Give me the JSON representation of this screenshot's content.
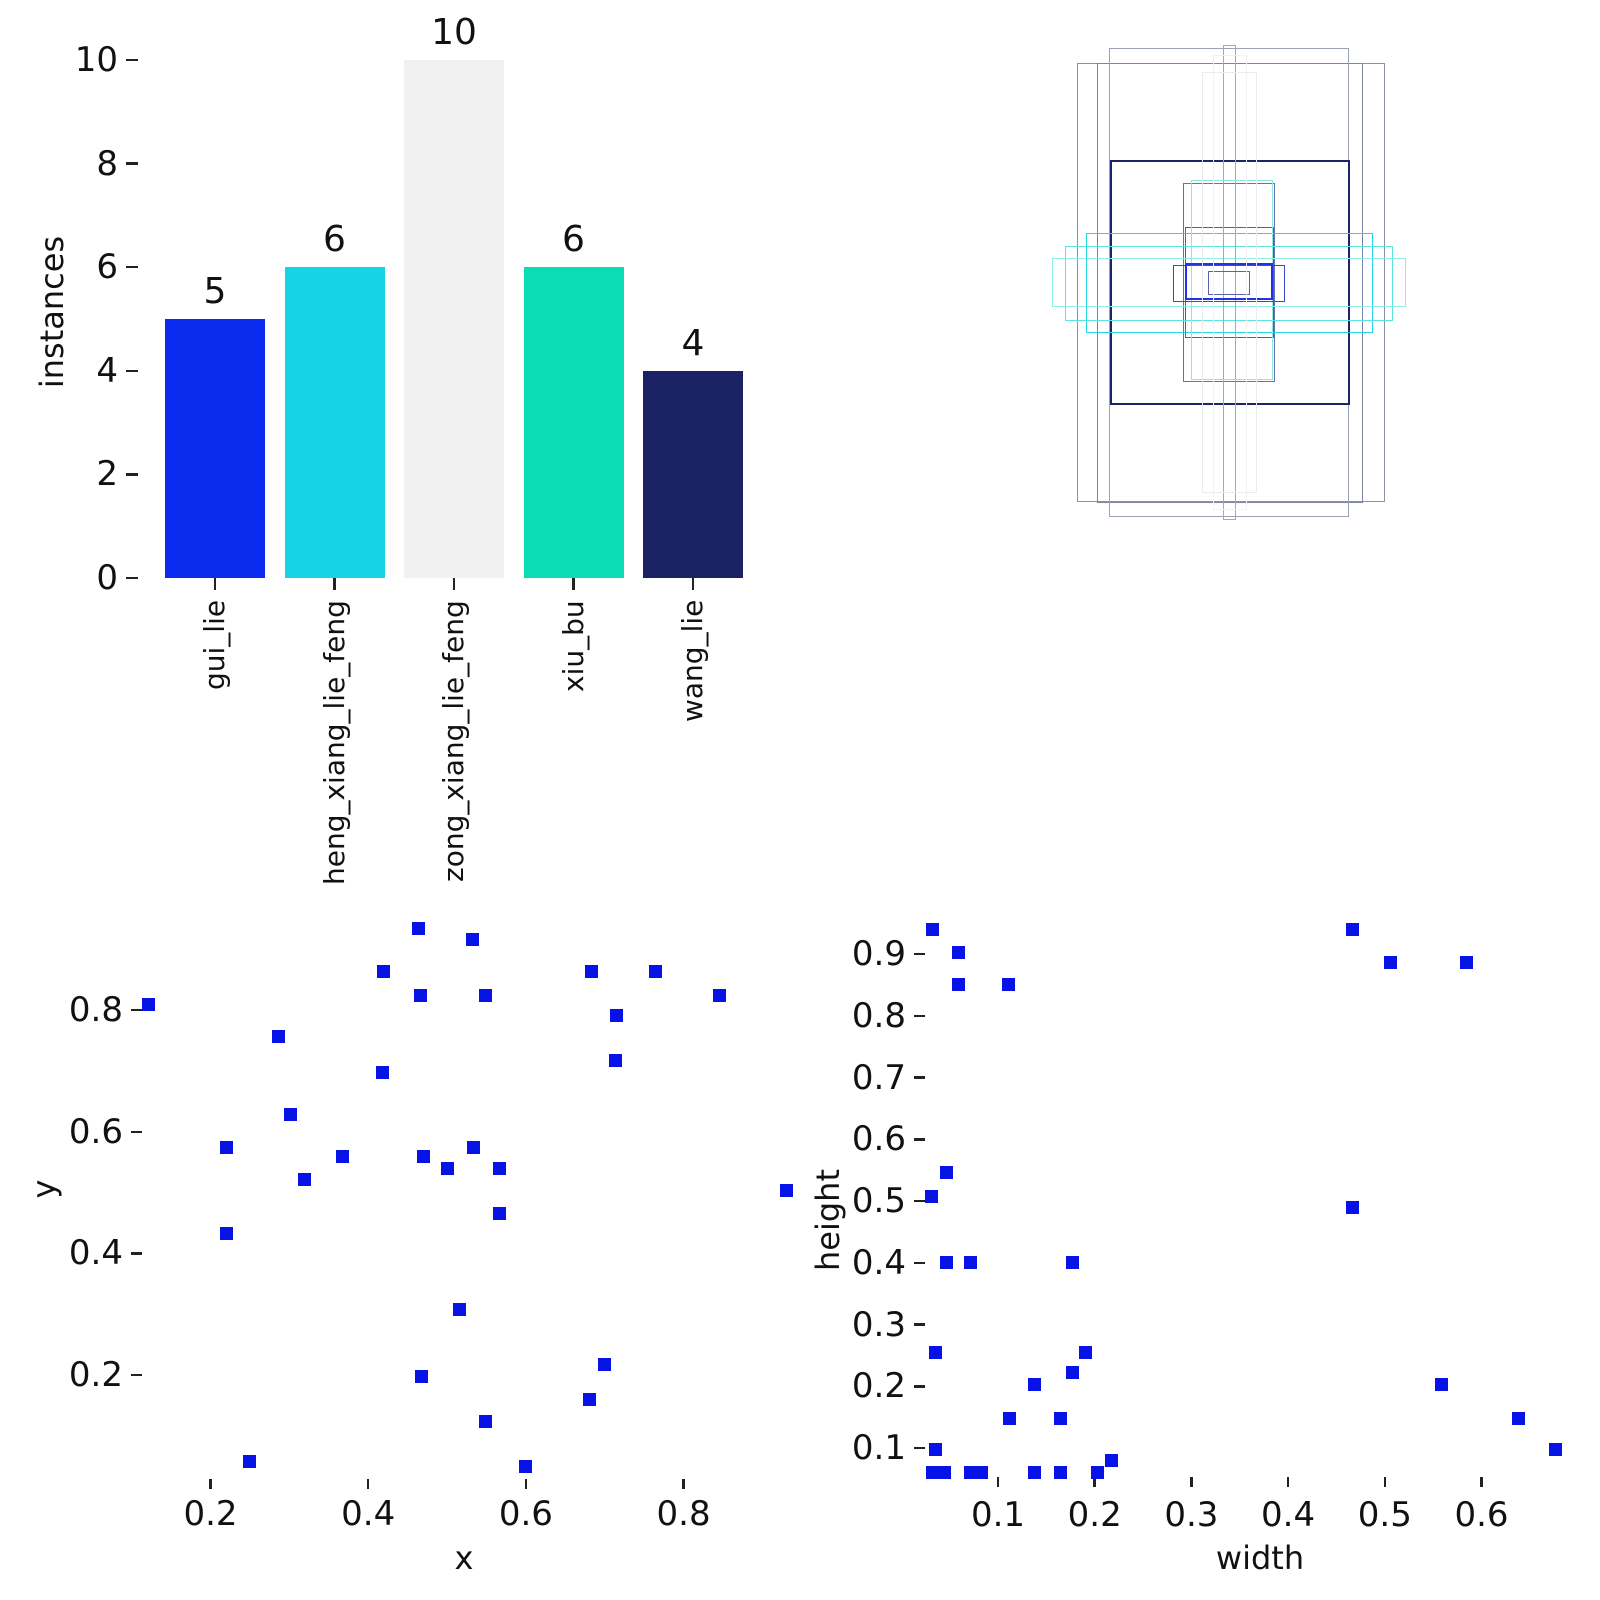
{
  "figure": {
    "background": "#ffffff",
    "text_color": "#111111",
    "marker_color": "#0612e6"
  },
  "chart_data": [
    {
      "id": "instances-per-cluster-bar",
      "type": "bar",
      "title": "",
      "xlabel": "",
      "ylabel": "instances",
      "categories": [
        "gui_lie",
        "heng_xiang_lie_feng",
        "zong_xiang_lie_feng",
        "xiu_bu",
        "wang_lie"
      ],
      "values": [
        5,
        6,
        10,
        6,
        4
      ],
      "value_labels": [
        "5",
        "6",
        "10",
        "6",
        "4"
      ],
      "bar_colors": [
        "#0b2cee",
        "#16d3e6",
        "#f1f1f2",
        "#0bdcb6",
        "#1b2264"
      ],
      "yticks": [
        0,
        2,
        4,
        6,
        8,
        10
      ],
      "ylim": [
        0,
        10
      ],
      "grid": false,
      "legend": "none"
    },
    {
      "id": "anchor-box-overlay",
      "type": "rectangles",
      "description": "outlined boxes of varying width/height drawn about a common center",
      "rects": [
        {
          "l": 0.156,
          "t": 0.066,
          "w": 0.684,
          "h": 0.878,
          "color": "#8b91a8",
          "lw": 1.5
        },
        {
          "l": 0.2,
          "t": 0.066,
          "w": 0.591,
          "h": 0.88,
          "color": "#7d85a3",
          "lw": 1.5
        },
        {
          "l": 0.227,
          "t": 0.036,
          "w": 0.533,
          "h": 0.938,
          "color": "#9aa2b6",
          "lw": 1.5
        },
        {
          "l": 0.229,
          "t": 0.26,
          "w": 0.533,
          "h": 0.49,
          "color": "#1c2467",
          "lw": 2
        },
        {
          "l": 0.391,
          "t": 0.306,
          "w": 0.204,
          "h": 0.398,
          "color": "#6671b5",
          "lw": 1.5
        },
        {
          "l": 0.396,
          "t": 0.394,
          "w": 0.198,
          "h": 0.222,
          "color": "#4d59c6",
          "lw": 1.5
        },
        {
          "l": 0.176,
          "t": 0.406,
          "w": 0.638,
          "h": 0.2,
          "color": "#1fd7e5",
          "lw": 1.5
        },
        {
          "l": 0.129,
          "t": 0.432,
          "w": 0.729,
          "h": 0.15,
          "color": "#59e4e0",
          "lw": 1.5
        },
        {
          "l": 0.1,
          "t": 0.456,
          "w": 0.787,
          "h": 0.098,
          "color": "#8feee8",
          "lw": 1.5
        },
        {
          "l": 0.48,
          "t": 0.03,
          "w": 0.029,
          "h": 0.95,
          "color": "#2adce3",
          "lw": 1.5
        },
        {
          "l": 0.409,
          "t": 0.3,
          "w": 0.182,
          "h": 0.4,
          "color": "#8ce9db",
          "lw": 1.5
        },
        {
          "l": 0.369,
          "t": 0.47,
          "w": 0.249,
          "h": 0.074,
          "color": "#3a49cf",
          "lw": 1.5
        },
        {
          "l": 0.396,
          "t": 0.466,
          "w": 0.196,
          "h": 0.074,
          "color": "#2133e2",
          "lw": 2.5
        },
        {
          "l": 0.447,
          "t": 0.482,
          "w": 0.093,
          "h": 0.048,
          "color": "#5a64ab",
          "lw": 1.5
        },
        {
          "l": 0.433,
          "t": 0.084,
          "w": 0.122,
          "h": 0.842,
          "color": "#ebebed",
          "lw": 1.5
        },
        {
          "l": 0.458,
          "t": 0.05,
          "w": 0.076,
          "h": 0.91,
          "color": "#f2f2f3",
          "lw": 1.5
        }
      ]
    },
    {
      "id": "box-center-scatter",
      "type": "scatter",
      "title": "",
      "xlabel": "x",
      "ylabel": "y",
      "marker": "square",
      "marker_color": "#0612e6",
      "xticks": [
        0.2,
        0.4,
        0.6,
        0.8
      ],
      "yticks": [
        0.2,
        0.4,
        0.6,
        0.8
      ],
      "grid": false,
      "points": [
        [
          0.464,
          0.934
        ],
        [
          0.532,
          0.916
        ],
        [
          0.419,
          0.863
        ],
        [
          0.466,
          0.825
        ],
        [
          0.549,
          0.825
        ],
        [
          0.683,
          0.863
        ],
        [
          0.764,
          0.863
        ],
        [
          0.846,
          0.825
        ],
        [
          0.715,
          0.792
        ],
        [
          0.121,
          0.809
        ],
        [
          0.286,
          0.756
        ],
        [
          0.714,
          0.718
        ],
        [
          0.418,
          0.698
        ],
        [
          0.302,
          0.629
        ],
        [
          0.22,
          0.575
        ],
        [
          0.368,
          0.559
        ],
        [
          0.47,
          0.559
        ],
        [
          0.5,
          0.54
        ],
        [
          0.534,
          0.575
        ],
        [
          0.567,
          0.54
        ],
        [
          0.319,
          0.522
        ],
        [
          0.93,
          0.504
        ],
        [
          0.567,
          0.465
        ],
        [
          0.22,
          0.432
        ],
        [
          0.516,
          0.307
        ],
        [
          0.7,
          0.218
        ],
        [
          0.468,
          0.198
        ],
        [
          0.681,
          0.159
        ],
        [
          0.549,
          0.124
        ],
        [
          0.25,
          0.057
        ],
        [
          0.599,
          0.05
        ]
      ]
    },
    {
      "id": "box-size-scatter",
      "type": "scatter",
      "title": "",
      "xlabel": "width",
      "ylabel": "height",
      "marker": "square",
      "marker_color": "#0612e6",
      "xticks": [
        0.1,
        0.2,
        0.3,
        0.4,
        0.5,
        0.6
      ],
      "yticks": [
        0.1,
        0.2,
        0.3,
        0.4,
        0.5,
        0.6,
        0.7,
        0.8,
        0.9
      ],
      "grid": false,
      "points": [
        [
          0.032,
          0.94
        ],
        [
          0.059,
          0.903
        ],
        [
          0.059,
          0.85
        ],
        [
          0.111,
          0.85
        ],
        [
          0.467,
          0.94
        ],
        [
          0.506,
          0.886
        ],
        [
          0.584,
          0.886
        ],
        [
          0.047,
          0.546
        ],
        [
          0.031,
          0.508
        ],
        [
          0.467,
          0.49
        ],
        [
          0.047,
          0.401
        ],
        [
          0.072,
          0.401
        ],
        [
          0.177,
          0.401
        ],
        [
          0.035,
          0.255
        ],
        [
          0.191,
          0.255
        ],
        [
          0.177,
          0.222
        ],
        [
          0.138,
          0.203
        ],
        [
          0.559,
          0.203
        ],
        [
          0.112,
          0.148
        ],
        [
          0.165,
          0.148
        ],
        [
          0.638,
          0.148
        ],
        [
          0.035,
          0.098
        ],
        [
          0.677,
          0.097
        ],
        [
          0.217,
          0.079
        ],
        [
          0.032,
          0.061
        ],
        [
          0.045,
          0.061
        ],
        [
          0.072,
          0.061
        ],
        [
          0.083,
          0.061
        ],
        [
          0.138,
          0.061
        ],
        [
          0.165,
          0.061
        ],
        [
          0.203,
          0.061
        ]
      ]
    }
  ]
}
